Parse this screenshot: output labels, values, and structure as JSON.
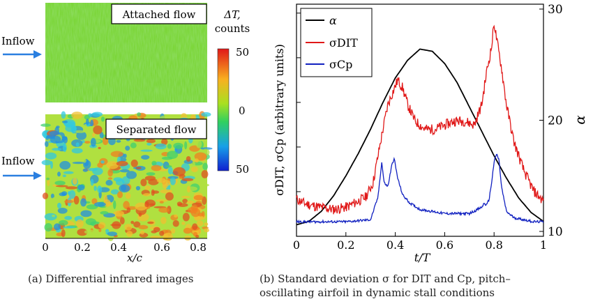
{
  "panel_a": {
    "label_top": "Attached flow",
    "label_bottom": "Separated flow",
    "inflow": "Inflow",
    "cbar_title_1": "ΔT,",
    "cbar_title_2": "counts",
    "cbar_ticks": [
      "50",
      "0",
      "50"
    ],
    "x_ticks": [
      "0",
      "0.2",
      "0.4",
      "0.6",
      "0.8"
    ],
    "xlabel": "x/c",
    "caption": "(a) Differential infrared images"
  },
  "colors": {
    "alpha": "#000000",
    "dit": "#e01818",
    "cp": "#1020c0",
    "arrow": "#2a7fe0"
  },
  "panel_b": {
    "caption_line1": "(b) Standard deviation σ for DIT and Cp, pitch–",
    "caption_line2": "oscillating airfoil in dynamic stall conditions"
  },
  "chart_data": {
    "type": "line",
    "xlabel": "t/T",
    "ylabel": "σDIT, σCp (arbitrary units)",
    "y2label": "α",
    "xlim": [
      0,
      1
    ],
    "y2lim": [
      10,
      30
    ],
    "x_ticks": [
      "0",
      "0.2",
      "0.4",
      "0.6",
      "0.8",
      "1"
    ],
    "y2_ticks": [
      "10",
      "20",
      "30"
    ],
    "legend": [
      "α",
      "σDIT",
      "σCp"
    ],
    "legend_position": "top-left",
    "series": [
      {
        "name": "α",
        "axis": "right",
        "x": [
          0,
          0.05,
          0.1,
          0.15,
          0.2,
          0.25,
          0.3,
          0.35,
          0.4,
          0.45,
          0.5,
          0.55,
          0.6,
          0.65,
          0.7,
          0.75,
          0.8,
          0.85,
          0.9,
          0.95,
          1.0
        ],
        "values": [
          10.6,
          10.9,
          11.8,
          13.2,
          15.0,
          17.0,
          19.2,
          21.6,
          23.8,
          25.4,
          26.4,
          26.2,
          25.1,
          23.4,
          21.2,
          19.0,
          16.8,
          14.8,
          13.0,
          11.7,
          10.9
        ]
      },
      {
        "name": "σDIT",
        "axis": "left",
        "x": [
          0,
          0.03,
          0.06,
          0.1,
          0.15,
          0.2,
          0.25,
          0.28,
          0.31,
          0.33,
          0.35,
          0.37,
          0.39,
          0.41,
          0.43,
          0.45,
          0.48,
          0.52,
          0.56,
          0.6,
          0.64,
          0.68,
          0.72,
          0.75,
          0.77,
          0.79,
          0.8,
          0.81,
          0.83,
          0.85,
          0.88,
          0.92,
          0.96,
          1.0
        ],
        "values": [
          0.14,
          0.12,
          0.11,
          0.1,
          0.09,
          0.1,
          0.13,
          0.15,
          0.22,
          0.35,
          0.48,
          0.6,
          0.66,
          0.72,
          0.68,
          0.6,
          0.52,
          0.48,
          0.48,
          0.5,
          0.52,
          0.52,
          0.5,
          0.6,
          0.76,
          0.88,
          1.0,
          0.92,
          0.78,
          0.6,
          0.42,
          0.28,
          0.18,
          0.13
        ]
      },
      {
        "name": "σCp",
        "axis": "left",
        "x": [
          0,
          0.1,
          0.2,
          0.3,
          0.33,
          0.345,
          0.355,
          0.37,
          0.385,
          0.395,
          0.41,
          0.43,
          0.46,
          0.5,
          0.6,
          0.7,
          0.75,
          0.76,
          0.77,
          0.78,
          0.79,
          0.8,
          0.81,
          0.82,
          0.83,
          0.85,
          0.88,
          0.92,
          0.96,
          1.0
        ],
        "values": [
          0.03,
          0.03,
          0.03,
          0.04,
          0.15,
          0.32,
          0.22,
          0.2,
          0.3,
          0.34,
          0.24,
          0.16,
          0.12,
          0.09,
          0.07,
          0.07,
          0.1,
          0.12,
          0.11,
          0.14,
          0.22,
          0.32,
          0.36,
          0.33,
          0.2,
          0.08,
          0.05,
          0.04,
          0.03,
          0.03
        ]
      }
    ]
  }
}
